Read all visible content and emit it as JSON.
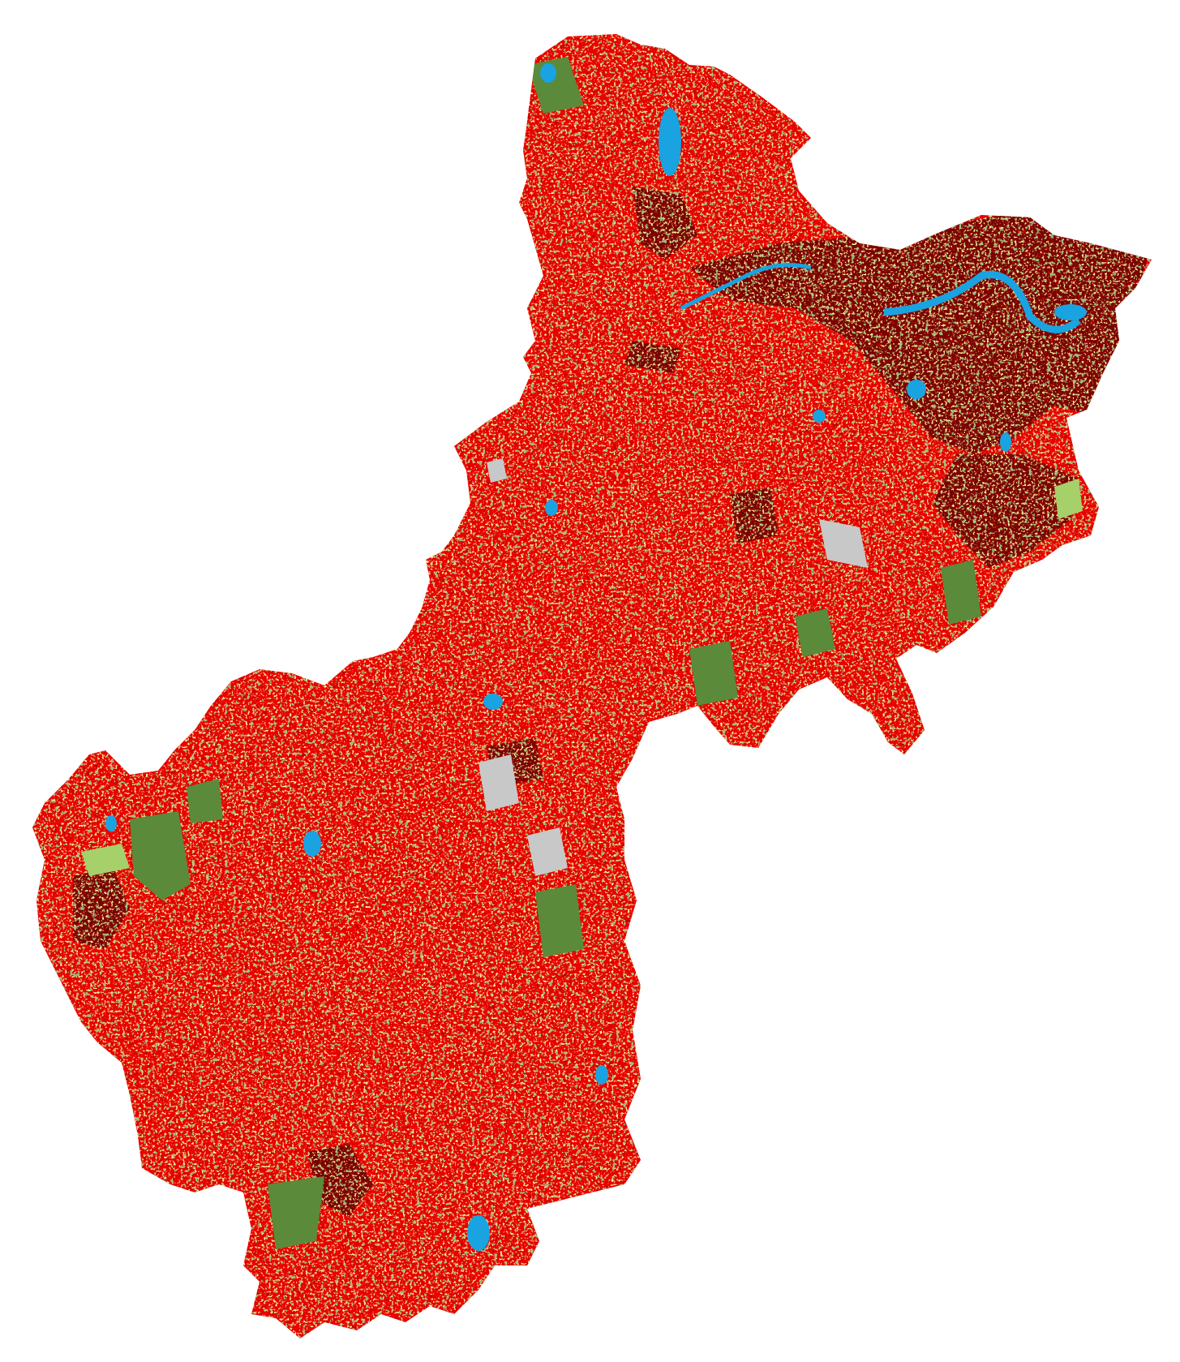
{
  "map": {
    "type": "land-cover classification raster",
    "colors": {
      "background": "#ffffff",
      "urban_dense": "#7a0000",
      "urban": "#e80000",
      "cropland": "#f2dc4e",
      "forest": "#5a8a3a",
      "grassland": "#a6d06a",
      "barren": "#c8c8c8",
      "water": "#19a3e0"
    }
  }
}
